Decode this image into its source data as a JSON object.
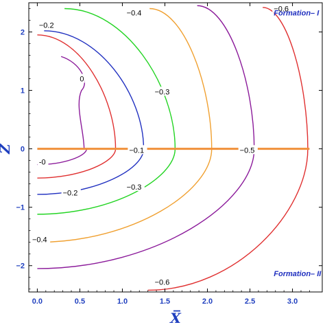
{
  "chart_data": {
    "type": "line",
    "title": "",
    "xlabel": "X̅",
    "ylabel": "Z̅",
    "xlim": [
      -0.1,
      3.35
    ],
    "ylim": [
      -2.45,
      2.5
    ],
    "xticks": [
      0.0,
      0.5,
      1.0,
      1.5,
      2.0,
      2.5,
      3.0
    ],
    "xtick_labels": [
      "0.0",
      "0.5",
      "1.0",
      "1.5",
      "2.0",
      "2.5",
      "3.0"
    ],
    "yticks": [
      -2,
      -1,
      0,
      1,
      2
    ],
    "ytick_labels": [
      "−2",
      "−1",
      "0",
      "1",
      "2"
    ],
    "grid": false,
    "annotations": [
      {
        "text": "Formation– I",
        "x": 2.78,
        "z": 2.28
      },
      {
        "text": "Formation– II",
        "x": 2.78,
        "z": -2.18
      }
    ],
    "boundary": {
      "z": 0,
      "x": [
        0.0,
        3.2
      ],
      "color": "#f0903a"
    },
    "contours": [
      {
        "label": "0",
        "color": "#8b1a9a",
        "x_axis": 0.58,
        "upper": {
          "x": [
            0.28,
            0.52,
            0.55
          ],
          "z": [
            1.58,
            1.0,
            0.0
          ]
        },
        "lower": {
          "x": [
            0.0,
            0.58
          ],
          "z": [
            -0.27,
            0.0
          ]
        },
        "labels": [
          {
            "text": "0",
            "x": 0.5,
            "z": 1.2
          },
          {
            "text": "-0",
            "x": 0.02,
            "z": -0.22
          }
        ]
      },
      {
        "label": "-0.1",
        "color": "#e03030",
        "x_axis": 0.92,
        "upper": {
          "x": [
            0.0,
            0.92
          ],
          "z": [
            1.95,
            0.0
          ]
        },
        "lower": {
          "x": [
            0.0,
            0.92
          ],
          "z": [
            -0.5,
            0.0
          ]
        },
        "labels": [
          {
            "text": "−0.1",
            "x": 1.08,
            "z": -0.02
          }
        ]
      },
      {
        "label": "-0.2",
        "color": "#2030c0",
        "x_axis": 1.25,
        "upper": {
          "x": [
            0.08,
            1.25
          ],
          "z": [
            2.02,
            0.0
          ]
        },
        "lower": {
          "x": [
            0.0,
            1.25
          ],
          "z": [
            -0.78,
            0.0
          ]
        },
        "labels": [
          {
            "text": "−0.2",
            "x": 0.02,
            "z": 2.12
          },
          {
            "text": "−0.2",
            "x": 0.3,
            "z": -0.75
          }
        ]
      },
      {
        "label": "-0.3",
        "color": "#22d422",
        "x_axis": 1.62,
        "upper": {
          "x": [
            0.32,
            1.62
          ],
          "z": [
            2.4,
            0.0
          ]
        },
        "lower": {
          "x": [
            0.0,
            1.62
          ],
          "z": [
            -1.12,
            0.0
          ]
        },
        "labels": [
          {
            "text": "−0.3",
            "x": 1.38,
            "z": 0.98
          },
          {
            "text": "−0.3",
            "x": 1.05,
            "z": -0.65
          }
        ]
      },
      {
        "label": "-0.4",
        "color": "#f0a030",
        "x_axis": 2.05,
        "upper": {
          "x": [
            1.32,
            2.05
          ],
          "z": [
            2.4,
            0.0
          ]
        },
        "lower": {
          "x": [
            0.0,
            2.05
          ],
          "z": [
            -1.6,
            0.0
          ]
        },
        "labels": [
          {
            "text": "−0.4",
            "x": 1.05,
            "z": 2.33
          },
          {
            "text": "−0.4",
            "x": -0.06,
            "z": -1.55
          }
        ]
      },
      {
        "label": "-0.5",
        "color": "#8b1a9a",
        "x_axis": 2.55,
        "upper": {
          "x": [
            1.88,
            2.55
          ],
          "z": [
            2.45,
            0.0
          ]
        },
        "lower": {
          "x": [
            0.0,
            2.55
          ],
          "z": [
            -2.05,
            0.0
          ]
        },
        "labels": [
          {
            "text": "−0.5",
            "x": 2.38,
            "z": -0.02
          }
        ]
      },
      {
        "label": "-0.6",
        "color": "#e03030",
        "x_axis": 3.18,
        "upper": {
          "x": [
            2.65,
            3.18
          ],
          "z": [
            2.42,
            0.0
          ]
        },
        "lower": {
          "x": [
            1.3,
            3.18
          ],
          "z": [
            -2.42,
            0.0
          ]
        },
        "labels": [
          {
            "text": "−0.6",
            "x": 2.78,
            "z": 2.4
          },
          {
            "text": "−0.6",
            "x": 1.38,
            "z": -2.28
          }
        ]
      }
    ]
  }
}
